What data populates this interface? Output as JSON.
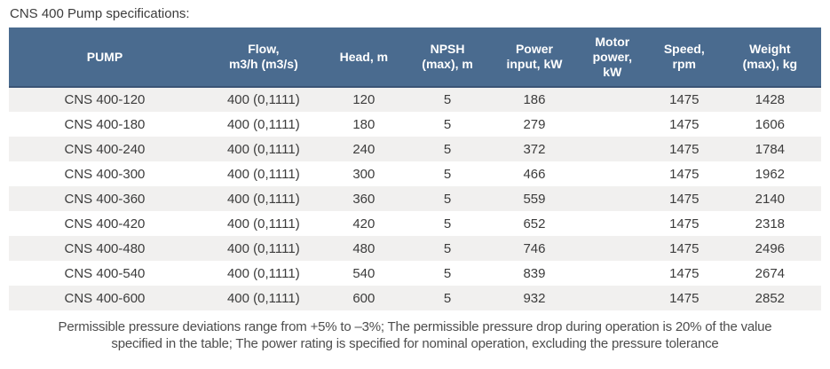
{
  "page": {
    "title": "CNS 400 Pump specifications:"
  },
  "table": {
    "columns": [
      {
        "id": "pump",
        "label": "PUMP"
      },
      {
        "id": "flow",
        "label": "Flow,\nm3/h (m3/s)"
      },
      {
        "id": "head",
        "label": "Head, m"
      },
      {
        "id": "npsh",
        "label": "NPSH\n(max), m"
      },
      {
        "id": "power-input",
        "label": "Power\ninput, kW"
      },
      {
        "id": "motor-power",
        "label": "Motor\npower,\nkW"
      },
      {
        "id": "speed",
        "label": "Speed,\nrpm"
      },
      {
        "id": "weight",
        "label": "Weight\n(max), kg"
      }
    ],
    "rows": [
      {
        "cells": [
          "CNS 400-120",
          "400 (0,1111)",
          "120",
          "5",
          "186",
          "",
          "1475",
          "1428"
        ]
      },
      {
        "cells": [
          "CNS 400-180",
          "400 (0,1111)",
          "180",
          "5",
          "279",
          "",
          "1475",
          "1606"
        ]
      },
      {
        "cells": [
          "CNS 400-240",
          "400 (0,1111)",
          "240",
          "5",
          "372",
          "",
          "1475",
          "1784"
        ]
      },
      {
        "cells": [
          "CNS 400-300",
          "400 (0,1111)",
          "300",
          "5",
          "466",
          "",
          "1475",
          "1962"
        ]
      },
      {
        "cells": [
          "CNS 400-360",
          "400 (0,1111)",
          "360",
          "5",
          "559",
          "",
          "1475",
          "2140"
        ]
      },
      {
        "cells": [
          "CNS 400-420",
          "400 (0,1111)",
          "420",
          "5",
          "652",
          "",
          "1475",
          "2318"
        ]
      },
      {
        "cells": [
          "CNS 400-480",
          "400 (0,1111)",
          "480",
          "5",
          "746",
          "",
          "1475",
          "2496"
        ]
      },
      {
        "cells": [
          "CNS 400-540",
          "400 (0,1111)",
          "540",
          "5",
          "839",
          "",
          "1475",
          "2674"
        ]
      },
      {
        "cells": [
          "CNS 400-600",
          "400 (0,1111)",
          "600",
          "5",
          "932",
          "",
          "1475",
          "2852"
        ]
      }
    ]
  },
  "colors": {
    "header_bg": "#4A6B8F",
    "header_border": "#3A5475",
    "row_alt_bg": "#F1F0EF",
    "body_text": "#3C3C3C"
  },
  "footer": {
    "line1": "Permissible pressure deviations range from +5% to –3%; The permissible pressure drop during operation is 20% of the value",
    "line2": "specified in the table; The power rating is specified for nominal operation, excluding the pressure tolerance"
  }
}
